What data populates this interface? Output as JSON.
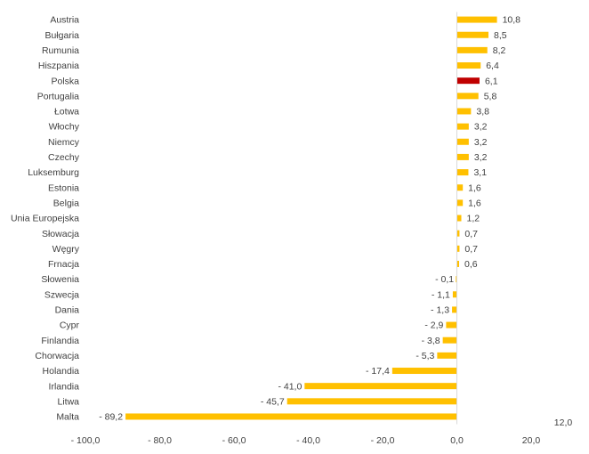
{
  "chart_data": {
    "type": "bar",
    "orientation": "horizontal",
    "categories": [
      "Austria",
      "Bułgaria",
      "Rumunia",
      "Hiszpania",
      "Polska",
      "Portugalia",
      "Łotwa",
      "Włochy",
      "Niemcy",
      "Czechy",
      "Luksemburg",
      "Estonia",
      "Belgia",
      "Unia Europejska",
      "Słowacja",
      "Węgry",
      "Frnacja",
      "Słowenia",
      "Szwecja",
      "Dania",
      "Cypr",
      "Finlandia",
      "Chorwacja",
      "Holandia",
      "Irlandia",
      "Litwa",
      "Malta"
    ],
    "values": [
      10.8,
      8.5,
      8.2,
      6.4,
      6.1,
      5.8,
      3.8,
      3.2,
      3.2,
      3.2,
      3.1,
      1.6,
      1.6,
      1.2,
      0.7,
      0.7,
      0.6,
      -0.1,
      -1.1,
      -1.3,
      -2.9,
      -3.8,
      -5.3,
      -17.4,
      -41.0,
      -45.7,
      -89.2
    ],
    "data_labels": [
      "10,8",
      "8,5",
      "8,2",
      "6,4",
      "6,1",
      "5,8",
      "3,8",
      "3,2",
      "3,2",
      "3,2",
      "3,1",
      "1,6",
      "1,6",
      "1,2",
      "0,7",
      "0,7",
      "0,6",
      "- 0,1",
      "- 1,1",
      "- 1,3",
      "- 2,9",
      "- 3,8",
      "- 5,3",
      "- 17,4",
      "- 41,0",
      "- 45,7",
      "- 89,2"
    ],
    "highlight_category": "Polska",
    "colors": {
      "default": "#FFC000",
      "highlight": "#C00000"
    },
    "xlim": [
      -100,
      20
    ],
    "x_ticks": [
      -100,
      -80,
      -60,
      -40,
      -20,
      0,
      20
    ],
    "x_tick_labels": [
      "- 100,0",
      "- 80,0",
      "- 60,0",
      "- 40,0",
      "- 20,0",
      "0,0",
      "20,0"
    ],
    "extra_tick_label": "12,0",
    "title": "",
    "xlabel": "",
    "ylabel": "",
    "grid": false,
    "legend": "none"
  }
}
